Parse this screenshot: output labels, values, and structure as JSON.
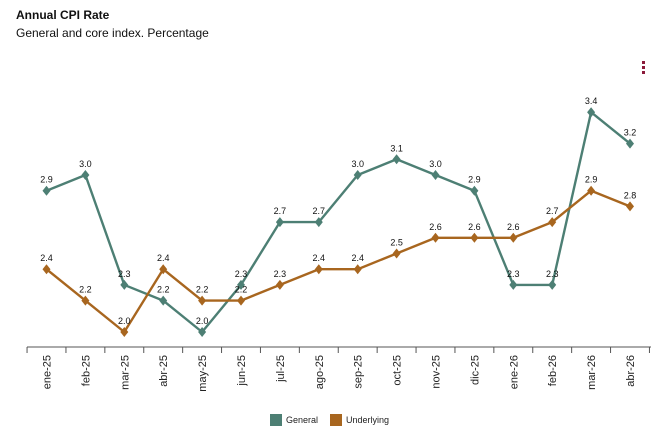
{
  "chart_data": {
    "type": "line",
    "title": "Annual CPI Rate",
    "subtitle": "General and core index. Percentage",
    "categories": [
      "ene-25",
      "feb-25",
      "mar-25",
      "abr-25",
      "may-25",
      "jun-25",
      "jul-25",
      "ago-25",
      "sep-25",
      "oct-25",
      "nov-25",
      "dic-25",
      "ene-26",
      "feb-26",
      "mar-26",
      "abr-26"
    ],
    "series": [
      {
        "name": "General",
        "color": "#4d7f74",
        "values": [
          2.9,
          3.0,
          2.3,
          2.2,
          2.0,
          2.3,
          2.7,
          2.7,
          3.0,
          3.1,
          3.0,
          2.9,
          2.3,
          2.3,
          3.4,
          3.2
        ]
      },
      {
        "name": "Underlying",
        "color": "#a8661f",
        "values": [
          2.4,
          2.2,
          2.0,
          2.4,
          2.2,
          2.2,
          2.3,
          2.4,
          2.4,
          2.5,
          2.6,
          2.6,
          2.6,
          2.7,
          2.9,
          2.8
        ]
      }
    ],
    "data_labels": true,
    "grid": false,
    "legend": "bottom-center"
  },
  "menu_icon": "vertical-dots-menu-icon",
  "menu_color": "#8b1a3a"
}
